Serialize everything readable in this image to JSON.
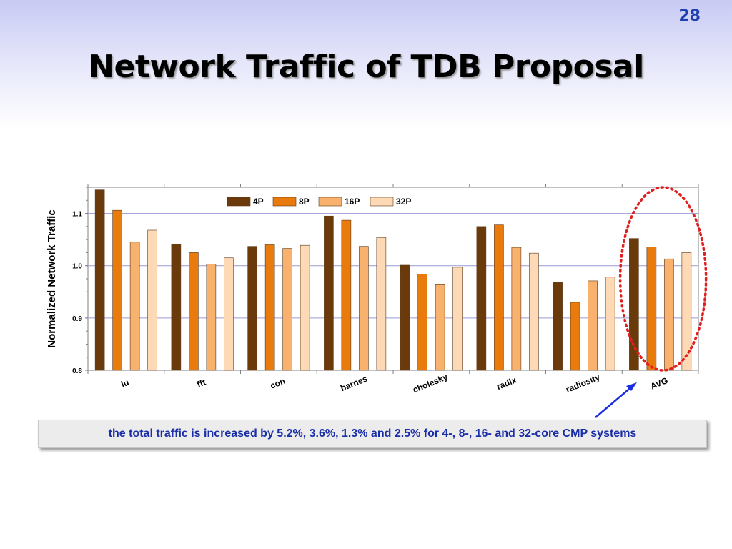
{
  "slide": {
    "number": "28",
    "title": "Network Traffic of TDB Proposal",
    "caption": "the total traffic is increased by 5.2%, 3.6%, 1.3% and 2.5%  for 4-, 8-, 16- and 32-core CMP systems"
  },
  "chart_data": {
    "type": "bar",
    "title": "",
    "xlabel": "",
    "ylabel": "Normalized Network Traffic",
    "ylim": [
      0.8,
      1.15
    ],
    "yticks": [
      0.8,
      0.9,
      1.0,
      1.1
    ],
    "ytick_labels": [
      "0.8",
      "0.9",
      "1.0",
      "1.1"
    ],
    "grid": true,
    "legend_position": "top-center",
    "categories": [
      "lu",
      "fft",
      "con",
      "barnes",
      "cholesky",
      "radix",
      "radiosity",
      "AVG"
    ],
    "series": [
      {
        "name": "4P",
        "color": "#6b3a0a",
        "values": [
          1.145,
          1.041,
          1.037,
          1.095,
          1.001,
          1.075,
          0.968,
          1.052
        ]
      },
      {
        "name": "8P",
        "color": "#e97a0c",
        "values": [
          1.106,
          1.025,
          1.04,
          1.087,
          0.984,
          1.078,
          0.93,
          1.036
        ]
      },
      {
        "name": "16P",
        "color": "#f9b16e",
        "values": [
          1.045,
          1.003,
          1.033,
          1.037,
          0.965,
          1.035,
          0.971,
          1.013
        ]
      },
      {
        "name": "32P",
        "color": "#fdd9b5",
        "values": [
          1.068,
          1.015,
          1.039,
          1.054,
          0.997,
          1.024,
          0.978,
          1.025
        ]
      }
    ],
    "highlight": {
      "category": "AVG",
      "shape": "dotted-ellipse",
      "color": "#e02020"
    }
  },
  "colors": {
    "title_text": "#000000",
    "slide_number": "#1f3fb0",
    "caption_text": "#1a2ea8",
    "arrow": "#1a2ee0",
    "gridline": "#9a9ad6"
  }
}
